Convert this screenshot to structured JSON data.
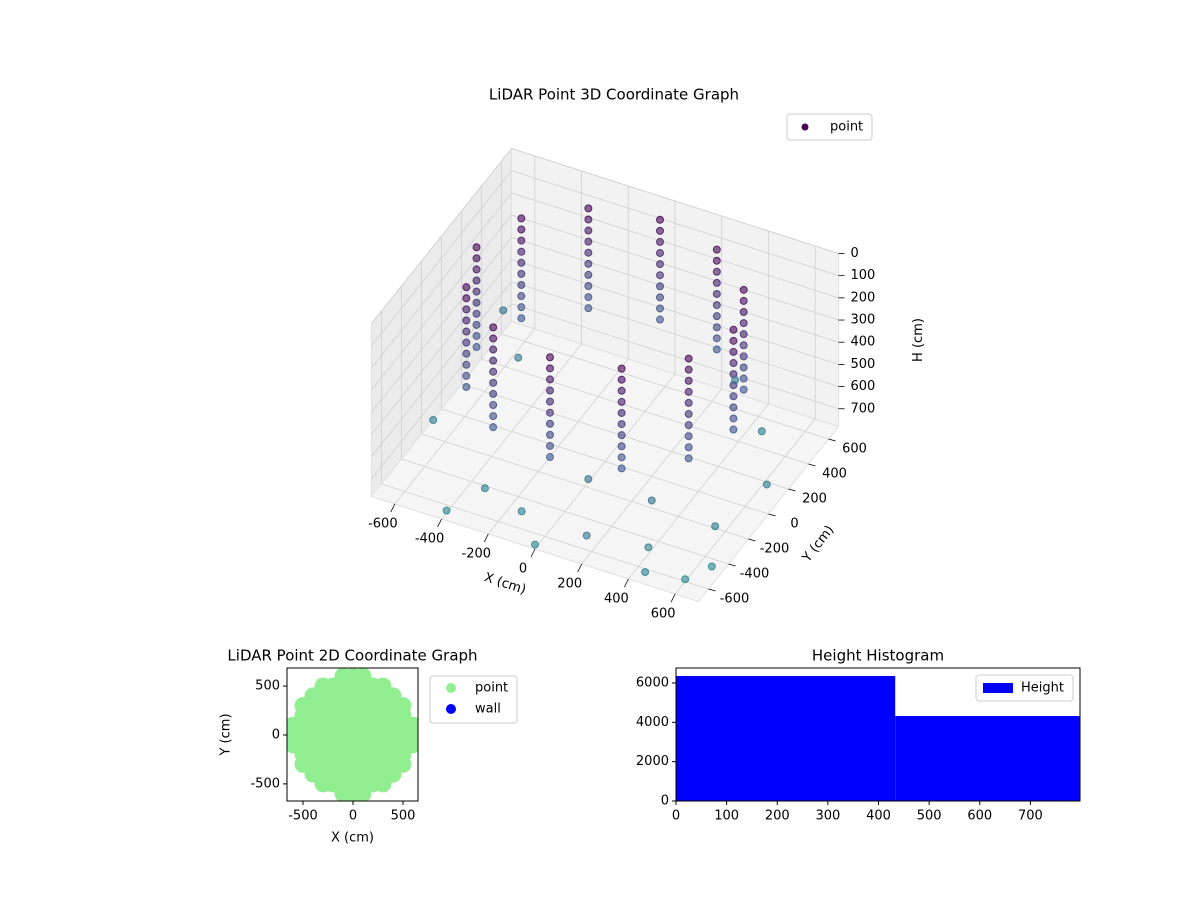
{
  "chart_data": [
    {
      "type": "scatter3d",
      "title": "LiDAR Point 3D Coordinate Graph",
      "xlabel": "X (cm)",
      "ylabel": "Y (cm)",
      "zlabel": "H (cm)",
      "zinverted": true,
      "xlim": [
        -700,
        700
      ],
      "ylim": [
        -700,
        700
      ],
      "zlim": [
        0,
        780
      ],
      "xticks": [
        -600,
        -400,
        -200,
        0,
        200,
        400,
        600
      ],
      "yticks": [
        -600,
        -400,
        -200,
        0,
        200,
        400,
        600
      ],
      "zticks": [
        0,
        100,
        200,
        300,
        400,
        500,
        600,
        700
      ],
      "cmap": "viridis",
      "legend": "upper right",
      "grid": true,
      "series": [
        {
          "name": "point",
          "color": "#440154",
          "x": [
            550,
            476,
            275,
            0,
            -275,
            -476,
            -550,
            -476,
            -275,
            0,
            275,
            476,
            550,
            476,
            275,
            0,
            -275,
            -476,
            -550,
            -476,
            -275,
            0,
            275,
            476,
            550,
            476,
            275,
            0,
            -275,
            -476,
            -550,
            -476,
            -275,
            0,
            275,
            476,
            550,
            476,
            275,
            0,
            -275,
            -476,
            -550,
            -476,
            -275,
            0,
            275,
            476,
            550,
            476,
            275,
            0,
            -275,
            -476,
            -550,
            -476,
            -275,
            0,
            275,
            476,
            550,
            476,
            275,
            0,
            -275,
            -476,
            -550,
            -476,
            -275,
            0,
            275,
            476,
            550,
            476,
            275,
            0,
            -275,
            -476,
            -550,
            -476,
            -275,
            0,
            275,
            476,
            550,
            476,
            275,
            0,
            -275,
            -476,
            -550,
            -476,
            -275,
            0,
            275,
            476,
            550,
            476,
            275,
            0,
            -275,
            -476,
            -550,
            -476,
            -275,
            0,
            275,
            476,
            550,
            476,
            275,
            0,
            -275,
            -476,
            -550,
            -476,
            -275,
            0,
            275,
            476,
            -650,
            -500,
            -300,
            -100,
            200,
            400,
            600,
            650,
            500,
            300,
            -400,
            0,
            600,
            650,
            450,
            -650,
            100,
            350
          ],
          "y": [
            0,
            275,
            476,
            550,
            476,
            275,
            0,
            -275,
            -476,
            -550,
            -476,
            -275,
            0,
            275,
            476,
            550,
            476,
            275,
            0,
            -275,
            -476,
            -550,
            -476,
            -275,
            0,
            275,
            476,
            550,
            476,
            275,
            0,
            -275,
            -476,
            -550,
            -476,
            -275,
            0,
            275,
            476,
            550,
            476,
            275,
            0,
            -275,
            -476,
            -550,
            -476,
            -275,
            0,
            275,
            476,
            550,
            476,
            275,
            0,
            -275,
            -476,
            -550,
            -476,
            -275,
            0,
            275,
            476,
            550,
            476,
            275,
            0,
            -275,
            -476,
            -550,
            -476,
            -275,
            0,
            275,
            476,
            550,
            476,
            275,
            0,
            -275,
            -476,
            -550,
            -476,
            -275,
            0,
            275,
            476,
            550,
            476,
            275,
            0,
            -275,
            -476,
            -550,
            -476,
            -275,
            0,
            275,
            476,
            550,
            476,
            275,
            0,
            -275,
            -476,
            -550,
            -476,
            -275,
            0,
            275,
            476,
            550,
            476,
            275,
            0,
            -275,
            -476,
            -550,
            -476,
            -275,
            -200,
            300,
            -500,
            -600,
            -650,
            -500,
            -300,
            100,
            400,
            600,
            -650,
            -700,
            -600,
            -450,
            -650,
            500,
            -400,
            -350
          ],
          "h": [
            0,
            0,
            0,
            0,
            0,
            0,
            0,
            0,
            0,
            0,
            0,
            0,
            50,
            50,
            50,
            50,
            50,
            50,
            50,
            50,
            50,
            50,
            50,
            50,
            100,
            100,
            100,
            100,
            100,
            100,
            100,
            100,
            100,
            100,
            100,
            100,
            150,
            150,
            150,
            150,
            150,
            150,
            150,
            150,
            150,
            150,
            150,
            150,
            200,
            200,
            200,
            200,
            200,
            200,
            200,
            200,
            200,
            200,
            200,
            200,
            250,
            250,
            250,
            250,
            250,
            250,
            250,
            250,
            250,
            250,
            250,
            250,
            300,
            300,
            300,
            300,
            300,
            300,
            300,
            300,
            300,
            300,
            300,
            300,
            350,
            350,
            350,
            350,
            350,
            350,
            350,
            350,
            350,
            350,
            350,
            350,
            400,
            400,
            400,
            400,
            400,
            400,
            400,
            400,
            400,
            400,
            400,
            400,
            450,
            450,
            450,
            450,
            450,
            450,
            450,
            450,
            450,
            450,
            450,
            450,
            700,
            650,
            720,
            700,
            680,
            750,
            700,
            720,
            700,
            650,
            770,
            760,
            770,
            780,
            760,
            600,
            600,
            640
          ]
        }
      ]
    },
    {
      "type": "scatter",
      "title": "LiDAR Point 2D Coordinate Graph",
      "xlabel": "X (cm)",
      "ylabel": "Y (cm)",
      "xlim": [
        -660,
        650
      ],
      "ylim": [
        -675,
        685
      ],
      "xticks": [
        -500,
        0,
        500
      ],
      "yticks": [
        -500,
        0,
        500
      ],
      "legend": "outside right",
      "series": [
        {
          "name": "point",
          "color": "#90ee90",
          "x": [
            -100,
            0,
            100,
            -300,
            -200,
            -100,
            0,
            100,
            200,
            300,
            -400,
            -300,
            -200,
            -100,
            0,
            100,
            200,
            300,
            400,
            -500,
            -400,
            -300,
            -200,
            -100,
            0,
            100,
            200,
            300,
            400,
            500,
            -500,
            -400,
            -300,
            -200,
            -100,
            0,
            100,
            200,
            300,
            400,
            500,
            -600,
            -500,
            -400,
            -300,
            -200,
            -100,
            0,
            100,
            200,
            300,
            400,
            500,
            600,
            -600,
            -500,
            -400,
            -300,
            -200,
            -100,
            0,
            100,
            200,
            300,
            400,
            500,
            600,
            -600,
            -500,
            -400,
            -300,
            -200,
            -100,
            0,
            100,
            200,
            300,
            400,
            500,
            600,
            -500,
            -400,
            -300,
            -200,
            -100,
            0,
            100,
            200,
            300,
            400,
            500,
            -500,
            -400,
            -300,
            -200,
            -100,
            0,
            100,
            200,
            300,
            400,
            500,
            -400,
            -300,
            -200,
            -100,
            0,
            100,
            200,
            300,
            400,
            -300,
            -200,
            -100,
            0,
            100,
            200,
            300,
            -100,
            0,
            100
          ],
          "y": [
            -600,
            -600,
            -600,
            -500,
            -500,
            -500,
            -500,
            -500,
            -500,
            -500,
            -400,
            -400,
            -400,
            -400,
            -400,
            -400,
            -400,
            -400,
            -400,
            -300,
            -300,
            -300,
            -300,
            -300,
            -300,
            -300,
            -300,
            -300,
            -300,
            -300,
            -200,
            -200,
            -200,
            -200,
            -200,
            -200,
            -200,
            -200,
            -200,
            -200,
            -200,
            -100,
            -100,
            -100,
            -100,
            -100,
            -100,
            -100,
            -100,
            -100,
            -100,
            -100,
            -100,
            -100,
            0,
            0,
            0,
            0,
            0,
            0,
            0,
            0,
            0,
            0,
            0,
            0,
            0,
            100,
            100,
            100,
            100,
            100,
            100,
            100,
            100,
            100,
            100,
            100,
            100,
            100,
            200,
            200,
            200,
            200,
            200,
            200,
            200,
            200,
            200,
            200,
            200,
            300,
            300,
            300,
            300,
            300,
            300,
            300,
            300,
            300,
            300,
            300,
            400,
            400,
            400,
            400,
            400,
            400,
            400,
            400,
            400,
            500,
            500,
            500,
            500,
            500,
            500,
            500,
            600,
            600,
            600
          ]
        },
        {
          "name": "wall",
          "color": "#0000ff",
          "x": [],
          "y": []
        }
      ]
    },
    {
      "type": "histogram",
      "title": "Height Histogram",
      "name": "Height",
      "color": "#0000ff",
      "bins": [
        0,
        433,
        798
      ],
      "counts": [
        6355,
        4320
      ],
      "xlim": [
        0,
        798
      ],
      "ylim": [
        0,
        6760
      ],
      "xticks": [
        0,
        100,
        200,
        300,
        400,
        500,
        600,
        700
      ],
      "yticks": [
        0,
        2000,
        4000,
        6000
      ],
      "legend": "upper right"
    }
  ]
}
